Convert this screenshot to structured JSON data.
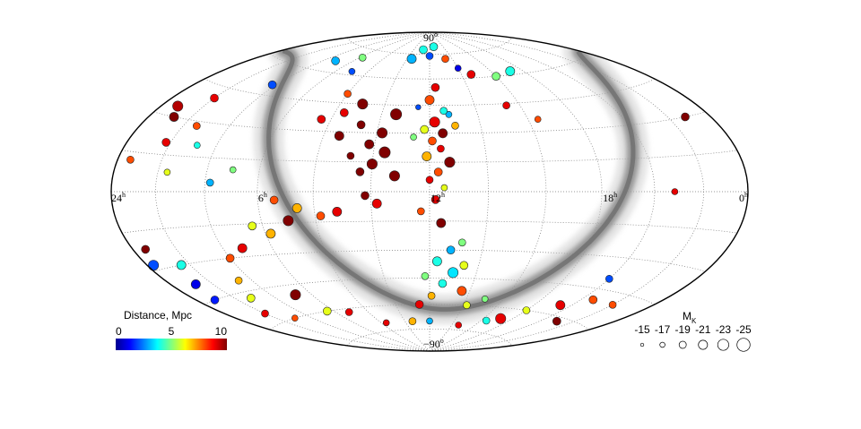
{
  "chart_data": {
    "type": "scatter",
    "projection": "aitoff-hammer",
    "grid": "dotted",
    "ra_labels": [
      {
        "label": "24",
        "sup": "h",
        "ra": 24
      },
      {
        "label": "18",
        "sup": "h",
        "ra": 18
      },
      {
        "label": "12",
        "sup": "h",
        "ra": 12
      },
      {
        "label": "6",
        "sup": "h",
        "ra": 6
      },
      {
        "label": "0",
        "sup": "h",
        "ra": 0
      }
    ],
    "dec_labels": [
      {
        "label": "90",
        "sup": "o",
        "dec": 90
      },
      {
        "label": "−90",
        "sup": "o",
        "dec": -90
      }
    ],
    "colorbar": {
      "label": "Distance, Mpc",
      "ticks": [
        {
          "value": 0,
          "label": "0"
        },
        {
          "value": 5,
          "label": "5"
        },
        {
          "value": 10,
          "label": "10"
        }
      ],
      "range": [
        0,
        10
      ],
      "colormap": "jet"
    },
    "size_legend": {
      "label": "M",
      "label_sub": "K",
      "entries": [
        {
          "mag": -15,
          "label": "-15"
        },
        {
          "mag": -17,
          "label": "-17"
        },
        {
          "mag": -19,
          "label": "-19"
        },
        {
          "mag": -21,
          "label": "-21"
        },
        {
          "mag": -23,
          "label": "-23"
        },
        {
          "mag": -25,
          "label": "-25"
        }
      ]
    },
    "zone_of_avoidance": "galactic plane shown in grey",
    "points": [
      {
        "ra": 12.3,
        "dec": 55,
        "dist": 9,
        "mk": -20
      },
      {
        "ra": 12.0,
        "dec": 48,
        "dist": 8,
        "mk": -21
      },
      {
        "ra": 12.6,
        "dec": 42,
        "dist": 4,
        "mk": -19
      },
      {
        "ra": 12.2,
        "dec": 36,
        "dist": 9,
        "mk": -22
      },
      {
        "ra": 11.8,
        "dec": 32,
        "dist": 6,
        "mk": -20
      },
      {
        "ra": 12.5,
        "dec": 30,
        "dist": 10,
        "mk": -21
      },
      {
        "ra": 12.1,
        "dec": 26,
        "dist": 8,
        "mk": -20
      },
      {
        "ra": 12.4,
        "dec": 22,
        "dist": 9,
        "mk": -19
      },
      {
        "ra": 11.9,
        "dec": 18,
        "dist": 7,
        "mk": -21
      },
      {
        "ra": 12.7,
        "dec": 15,
        "dist": 10,
        "mk": -22
      },
      {
        "ra": 12.3,
        "dec": 10,
        "dist": 8,
        "mk": -20
      },
      {
        "ra": 12.0,
        "dec": 6,
        "dist": 9,
        "mk": -19
      },
      {
        "ra": 12.5,
        "dec": 2,
        "dist": 6,
        "mk": -18
      },
      {
        "ra": 12.2,
        "dec": -4,
        "dist": 9,
        "mk": -20
      },
      {
        "ra": 11.7,
        "dec": -10,
        "dist": 8,
        "mk": -19
      },
      {
        "ra": 12.4,
        "dec": -16,
        "dist": 10,
        "mk": -21
      },
      {
        "ra": 12.8,
        "dec": 40,
        "dist": 3,
        "mk": -18
      },
      {
        "ra": 11.5,
        "dec": 44,
        "dist": 2,
        "mk": -17
      },
      {
        "ra": 13.0,
        "dec": 34,
        "dist": 7,
        "mk": -19
      },
      {
        "ra": 11.4,
        "dec": 28,
        "dist": 5,
        "mk": -18
      },
      {
        "ra": 10.6,
        "dec": 40,
        "dist": 10.5,
        "mk": -23
      },
      {
        "ra": 10.2,
        "dec": 30,
        "dist": 10.5,
        "mk": -22
      },
      {
        "ra": 10.4,
        "dec": 20,
        "dist": 10.5,
        "mk": -23
      },
      {
        "ra": 9.8,
        "dec": 24,
        "dist": 10.5,
        "mk": -21
      },
      {
        "ra": 10.0,
        "dec": 14,
        "dist": 10.5,
        "mk": -22
      },
      {
        "ra": 9.6,
        "dec": 10,
        "dist": 10,
        "mk": -20
      },
      {
        "ra": 9.0,
        "dec": 45,
        "dist": 10.5,
        "mk": -22
      },
      {
        "ra": 9.3,
        "dec": 34,
        "dist": 10,
        "mk": -20
      },
      {
        "ra": 8.6,
        "dec": 28,
        "dist": 10.5,
        "mk": -21
      },
      {
        "ra": 9.2,
        "dec": 18,
        "dist": 10,
        "mk": -19
      },
      {
        "ra": 10.8,
        "dec": 8,
        "dist": 10.5,
        "mk": -22
      },
      {
        "ra": 8.4,
        "dec": 40,
        "dist": 9,
        "mk": -20
      },
      {
        "ra": 8.0,
        "dec": 50,
        "dist": 8,
        "mk": -19
      },
      {
        "ra": 7.6,
        "dec": 36,
        "dist": 9,
        "mk": -20
      },
      {
        "ra": 9.8,
        "dec": -2,
        "dist": 10,
        "mk": -20
      },
      {
        "ra": 10.2,
        "dec": -6,
        "dist": 9,
        "mk": -21
      },
      {
        "ra": 8.8,
        "dec": -10,
        "dist": 9,
        "mk": -21
      },
      {
        "ra": 8.2,
        "dec": -12,
        "dist": 8,
        "mk": -20
      },
      {
        "ra": 7.4,
        "dec": -8,
        "dist": 7,
        "mk": -21
      },
      {
        "ra": 6.6,
        "dec": -4,
        "dist": 8,
        "mk": -20
      },
      {
        "ra": 7.0,
        "dec": -14,
        "dist": 10,
        "mk": -22
      },
      {
        "ra": 6.2,
        "dec": -20,
        "dist": 7,
        "mk": -21
      },
      {
        "ra": 5.6,
        "dec": -16,
        "dist": 6,
        "mk": -20
      },
      {
        "ra": 4.8,
        "dec": -26,
        "dist": 9,
        "mk": -21
      },
      {
        "ra": 4.0,
        "dec": -30,
        "dist": 8,
        "mk": -20
      },
      {
        "ra": 3.4,
        "dec": -40,
        "dist": 7,
        "mk": -19
      },
      {
        "ra": 2.8,
        "dec": -48,
        "dist": 6,
        "mk": -20
      },
      {
        "ra": 1.6,
        "dec": -30,
        "dist": 4,
        "mk": -21
      },
      {
        "ra": 0.6,
        "dec": -22,
        "dist": 10,
        "mk": -20
      },
      {
        "ra": 0.3,
        "dec": -28,
        "dist": 2,
        "mk": -22
      },
      {
        "ra": 1.2,
        "dec": -38,
        "dist": 1,
        "mk": -21
      },
      {
        "ra": 0.9,
        "dec": -45,
        "dist": 1.5,
        "mk": -20
      },
      {
        "ra": 2.0,
        "dec": -55,
        "dist": 9,
        "mk": -19
      },
      {
        "ra": 5.2,
        "dec": -50,
        "dist": 10.5,
        "mk": -22
      },
      {
        "ra": 5.6,
        "dec": -60,
        "dist": 6,
        "mk": -20
      },
      {
        "ra": 6.8,
        "dec": -62,
        "dist": 9,
        "mk": -19
      },
      {
        "ra": 3.0,
        "dec": -60,
        "dist": 8,
        "mk": -18
      },
      {
        "ra": 8.4,
        "dec": -70,
        "dist": 9,
        "mk": -18
      },
      {
        "ra": 2.0,
        "dec": 40,
        "dist": 9,
        "mk": -20
      },
      {
        "ra": 1.2,
        "dec": 30,
        "dist": 10,
        "mk": -21
      },
      {
        "ra": 1.8,
        "dec": 20,
        "dist": 9,
        "mk": -20
      },
      {
        "ra": 0.6,
        "dec": 12,
        "dist": 8,
        "mk": -19
      },
      {
        "ra": 2.6,
        "dec": 28,
        "dist": 8,
        "mk": -19
      },
      {
        "ra": 0.8,
        "dec": 34,
        "dist": 9.5,
        "mk": -22
      },
      {
        "ra": 3.2,
        "dec": 20,
        "dist": 4,
        "mk": -18
      },
      {
        "ra": 3.8,
        "dec": 50,
        "dist": 2,
        "mk": -20
      },
      {
        "ra": 4.8,
        "dec": 66,
        "dist": 3,
        "mk": -20
      },
      {
        "ra": 6.2,
        "dec": 70,
        "dist": 5,
        "mk": -19
      },
      {
        "ra": 7.0,
        "dec": 62,
        "dist": 2,
        "mk": -18
      },
      {
        "ra": 2.4,
        "dec": 8,
        "dist": 6,
        "mk": -18
      },
      {
        "ra": 4.2,
        "dec": 4,
        "dist": 3,
        "mk": -19
      },
      {
        "ra": 5.0,
        "dec": 10,
        "dist": 5,
        "mk": -18
      },
      {
        "ra": 12.8,
        "dec": -30,
        "dist": 3,
        "mk": -20
      },
      {
        "ra": 12.3,
        "dec": -36,
        "dist": 4,
        "mk": -21
      },
      {
        "ra": 13.0,
        "dec": -42,
        "dist": 3.5,
        "mk": -22
      },
      {
        "ra": 12.6,
        "dec": -48,
        "dist": 4,
        "mk": -20
      },
      {
        "ra": 11.8,
        "dec": -44,
        "dist": 5,
        "mk": -19
      },
      {
        "ra": 13.4,
        "dec": -38,
        "dist": 6,
        "mk": -20
      },
      {
        "ra": 12.1,
        "dec": -55,
        "dist": 7,
        "mk": -19
      },
      {
        "ra": 13.6,
        "dec": -52,
        "dist": 8,
        "mk": -21
      },
      {
        "ra": 11.4,
        "dec": -60,
        "dist": 9,
        "mk": -20
      },
      {
        "ra": 13.2,
        "dec": -26,
        "dist": 5,
        "mk": -19
      },
      {
        "ra": 12.0,
        "dec": -70,
        "dist": 3,
        "mk": -18
      },
      {
        "ra": 10.6,
        "dec": -70,
        "dist": 7,
        "mk": -19
      },
      {
        "ra": 14.2,
        "dec": -60,
        "dist": 6,
        "mk": -19
      },
      {
        "ra": 15.0,
        "dec": -56,
        "dist": 5,
        "mk": -18
      },
      {
        "ra": 12.6,
        "dec": 80,
        "dist": 4,
        "mk": -20
      },
      {
        "ra": 12.0,
        "dec": 74,
        "dist": 2,
        "mk": -19
      },
      {
        "ra": 11.2,
        "dec": 78,
        "dist": 4,
        "mk": -20
      },
      {
        "ra": 10.4,
        "dec": 72,
        "dist": 3,
        "mk": -21
      },
      {
        "ra": 13.4,
        "dec": 72,
        "dist": 8,
        "mk": -19
      },
      {
        "ra": 14.6,
        "dec": 62,
        "dist": 9,
        "mk": -20
      },
      {
        "ra": 16.0,
        "dec": 60,
        "dist": 5,
        "mk": -20
      },
      {
        "ra": 17.2,
        "dec": 62,
        "dist": 4,
        "mk": -21
      },
      {
        "ra": 14.0,
        "dec": 66,
        "dist": 1,
        "mk": -18
      },
      {
        "ra": 15.4,
        "dec": 44,
        "dist": 9,
        "mk": -19
      },
      {
        "ra": 16.4,
        "dec": 36,
        "dist": 8,
        "mk": -18
      },
      {
        "ra": 20.0,
        "dec": -40,
        "dist": 2,
        "mk": -19
      },
      {
        "ra": 20.6,
        "dec": -50,
        "dist": 8,
        "mk": -20
      },
      {
        "ra": 19.4,
        "dec": -55,
        "dist": 9,
        "mk": -21
      },
      {
        "ra": 18.0,
        "dec": -60,
        "dist": 6,
        "mk": -19
      },
      {
        "ra": 17.2,
        "dec": -66,
        "dist": 9,
        "mk": -22
      },
      {
        "ra": 16.4,
        "dec": -68,
        "dist": 4,
        "mk": -19
      },
      {
        "ra": 21.0,
        "dec": -62,
        "dist": 10,
        "mk": -20
      },
      {
        "ra": 22.0,
        "dec": -50,
        "dist": 8,
        "mk": -19
      },
      {
        "ra": 14.6,
        "dec": -72,
        "dist": 9,
        "mk": -18
      },
      {
        "ra": 22.8,
        "dec": 30,
        "dist": 10.5,
        "mk": -20
      },
      {
        "ra": 20.8,
        "dec": 0,
        "dist": 9,
        "mk": -18
      }
    ]
  }
}
